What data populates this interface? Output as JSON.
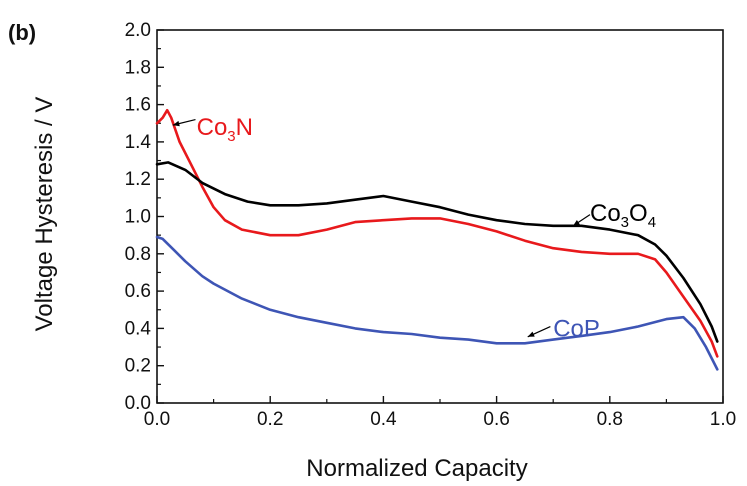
{
  "chart_data": {
    "type": "line",
    "panel_label": "(b)",
    "xlabel": "Normalized Capacity",
    "ylabel": "Voltage Hysteresis / V",
    "xlim": [
      0.0,
      1.0
    ],
    "ylim": [
      0.0,
      2.0
    ],
    "x_ticks": [
      0.0,
      0.2,
      0.4,
      0.6,
      0.8,
      1.0
    ],
    "x_tick_labels": [
      "0.0",
      "0.2",
      "0.4",
      "0.6",
      "0.8",
      "1.0"
    ],
    "y_ticks": [
      0.0,
      0.2,
      0.4,
      0.6,
      0.8,
      1.0,
      1.2,
      1.4,
      1.6,
      1.8,
      2.0
    ],
    "y_tick_labels": [
      "0.0",
      "0.2",
      "0.4",
      "0.6",
      "0.8",
      "1.0",
      "1.2",
      "1.4",
      "1.6",
      "1.8",
      "2.0"
    ],
    "grid": false,
    "legend": "none",
    "series": [
      {
        "key": "co3n",
        "label_main": "Co",
        "label_sub": "3",
        "label_tail": "N",
        "color": "#e8191c",
        "label_at": [
          0.07,
          1.48
        ],
        "arrow_from": [
          0.068,
          1.52
        ],
        "arrow_to": [
          0.028,
          1.49
        ],
        "points": [
          [
            0.0,
            1.5
          ],
          [
            0.01,
            1.53
          ],
          [
            0.018,
            1.57
          ],
          [
            0.025,
            1.53
          ],
          [
            0.04,
            1.4
          ],
          [
            0.06,
            1.28
          ],
          [
            0.08,
            1.16
          ],
          [
            0.1,
            1.05
          ],
          [
            0.12,
            0.98
          ],
          [
            0.15,
            0.93
          ],
          [
            0.2,
            0.9
          ],
          [
            0.25,
            0.9
          ],
          [
            0.3,
            0.93
          ],
          [
            0.35,
            0.97
          ],
          [
            0.4,
            0.98
          ],
          [
            0.45,
            0.99
          ],
          [
            0.5,
            0.99
          ],
          [
            0.55,
            0.96
          ],
          [
            0.6,
            0.92
          ],
          [
            0.65,
            0.87
          ],
          [
            0.7,
            0.83
          ],
          [
            0.75,
            0.81
          ],
          [
            0.8,
            0.8
          ],
          [
            0.85,
            0.8
          ],
          [
            0.88,
            0.77
          ],
          [
            0.9,
            0.7
          ],
          [
            0.93,
            0.57
          ],
          [
            0.96,
            0.44
          ],
          [
            0.98,
            0.33
          ],
          [
            0.99,
            0.25
          ]
        ]
      },
      {
        "key": "co3o4",
        "label_main": "Co",
        "label_sub": "3",
        "label_tail": "O",
        "label_sub2": "4",
        "color": "#000000",
        "label_at": [
          0.765,
          1.02
        ],
        "arrow_from": [
          0.765,
          1.01
        ],
        "arrow_to": [
          0.735,
          0.95
        ],
        "points": [
          [
            0.0,
            1.28
          ],
          [
            0.02,
            1.29
          ],
          [
            0.05,
            1.25
          ],
          [
            0.08,
            1.18
          ],
          [
            0.12,
            1.12
          ],
          [
            0.16,
            1.08
          ],
          [
            0.2,
            1.06
          ],
          [
            0.25,
            1.06
          ],
          [
            0.3,
            1.07
          ],
          [
            0.35,
            1.09
          ],
          [
            0.4,
            1.11
          ],
          [
            0.45,
            1.08
          ],
          [
            0.5,
            1.05
          ],
          [
            0.55,
            1.01
          ],
          [
            0.6,
            0.98
          ],
          [
            0.65,
            0.96
          ],
          [
            0.7,
            0.95
          ],
          [
            0.75,
            0.95
          ],
          [
            0.8,
            0.93
          ],
          [
            0.85,
            0.9
          ],
          [
            0.88,
            0.85
          ],
          [
            0.9,
            0.79
          ],
          [
            0.93,
            0.67
          ],
          [
            0.96,
            0.53
          ],
          [
            0.98,
            0.41
          ],
          [
            0.99,
            0.33
          ]
        ]
      },
      {
        "key": "cop",
        "label_main": "CoP",
        "color": "#3e55b5",
        "label_at": [
          0.7,
          0.4
        ],
        "arrow_from": [
          0.695,
          0.41
        ],
        "arrow_to": [
          0.655,
          0.355
        ],
        "points": [
          [
            0.0,
            0.89
          ],
          [
            0.01,
            0.88
          ],
          [
            0.03,
            0.82
          ],
          [
            0.05,
            0.76
          ],
          [
            0.08,
            0.68
          ],
          [
            0.1,
            0.64
          ],
          [
            0.15,
            0.56
          ],
          [
            0.2,
            0.5
          ],
          [
            0.25,
            0.46
          ],
          [
            0.3,
            0.43
          ],
          [
            0.35,
            0.4
          ],
          [
            0.4,
            0.38
          ],
          [
            0.45,
            0.37
          ],
          [
            0.5,
            0.35
          ],
          [
            0.55,
            0.34
          ],
          [
            0.6,
            0.32
          ],
          [
            0.65,
            0.32
          ],
          [
            0.7,
            0.34
          ],
          [
            0.75,
            0.36
          ],
          [
            0.8,
            0.38
          ],
          [
            0.85,
            0.41
          ],
          [
            0.9,
            0.45
          ],
          [
            0.93,
            0.46
          ],
          [
            0.95,
            0.4
          ],
          [
            0.97,
            0.3
          ],
          [
            0.99,
            0.18
          ]
        ]
      }
    ]
  }
}
